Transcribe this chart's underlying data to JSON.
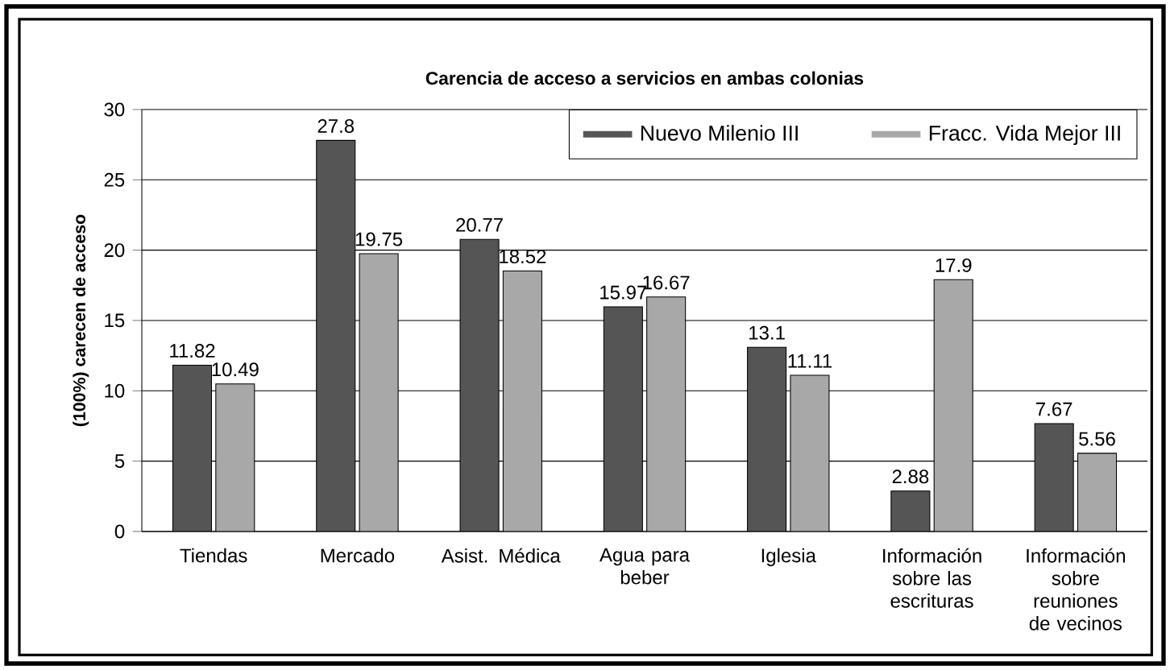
{
  "chart_data": {
    "type": "bar",
    "title": "Carencia de acceso a servicios en ambas colonias",
    "ylabel": "(100%) carecen de acceso",
    "categories": [
      "Tiendas",
      "Mercado",
      "Asist. Médica",
      "Agua para beber",
      "Iglesia",
      "Información sobre las escrituras",
      "Información sobre reuniones de vecinos"
    ],
    "series": [
      {
        "name": "Nuevo Milenio III",
        "color": "#555555",
        "values": [
          11.82,
          27.8,
          20.77,
          15.97,
          13.1,
          2.88,
          7.67
        ]
      },
      {
        "name": "Fracc. Vida Mejor III",
        "color": "#a8a8a8",
        "values": [
          10.49,
          19.75,
          18.52,
          16.67,
          11.11,
          17.9,
          5.56
        ]
      }
    ],
    "ylim": [
      0,
      30
    ],
    "yticks": [
      0,
      5,
      10,
      15,
      20,
      25,
      30
    ],
    "grid": "y",
    "legend": "top right",
    "data_labels": true
  }
}
